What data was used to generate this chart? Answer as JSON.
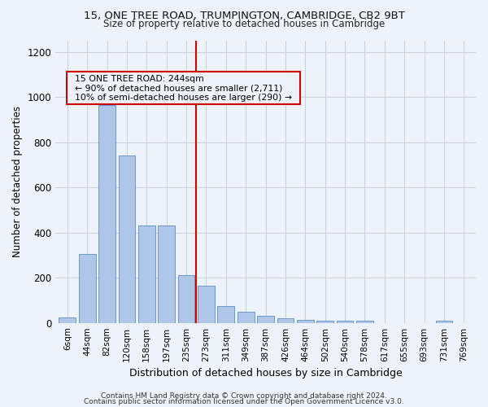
{
  "title1": "15, ONE TREE ROAD, TRUMPINGTON, CAMBRIDGE, CB2 9BT",
  "title2": "Size of property relative to detached houses in Cambridge",
  "xlabel": "Distribution of detached houses by size in Cambridge",
  "ylabel": "Number of detached properties",
  "bar_labels": [
    "6sqm",
    "44sqm",
    "82sqm",
    "120sqm",
    "158sqm",
    "197sqm",
    "235sqm",
    "273sqm",
    "311sqm",
    "349sqm",
    "387sqm",
    "426sqm",
    "464sqm",
    "502sqm",
    "540sqm",
    "578sqm",
    "617sqm",
    "655sqm",
    "693sqm",
    "731sqm",
    "769sqm"
  ],
  "bar_heights": [
    25,
    305,
    965,
    740,
    430,
    430,
    210,
    165,
    75,
    50,
    30,
    20,
    15,
    10,
    10,
    10,
    0,
    0,
    0,
    10,
    0
  ],
  "bar_color": "#aec6e8",
  "bar_edge_color": "#5a8fc2",
  "vline_color": "#cc0000",
  "vline_pos": 6.5,
  "annotation_text": "  15 ONE TREE ROAD: 244sqm  \n  ← 90% of detached houses are smaller (2,711)  \n  10% of semi-detached houses are larger (290) →  ",
  "ylim": [
    0,
    1250
  ],
  "yticks": [
    0,
    200,
    400,
    600,
    800,
    1000,
    1200
  ],
  "footer1": "Contains HM Land Registry data © Crown copyright and database right 2024.",
  "footer2": "Contains public sector information licensed under the Open Government Licence v3.0.",
  "bg_color": "#eef2fa",
  "grid_color": "#c8d0e0"
}
